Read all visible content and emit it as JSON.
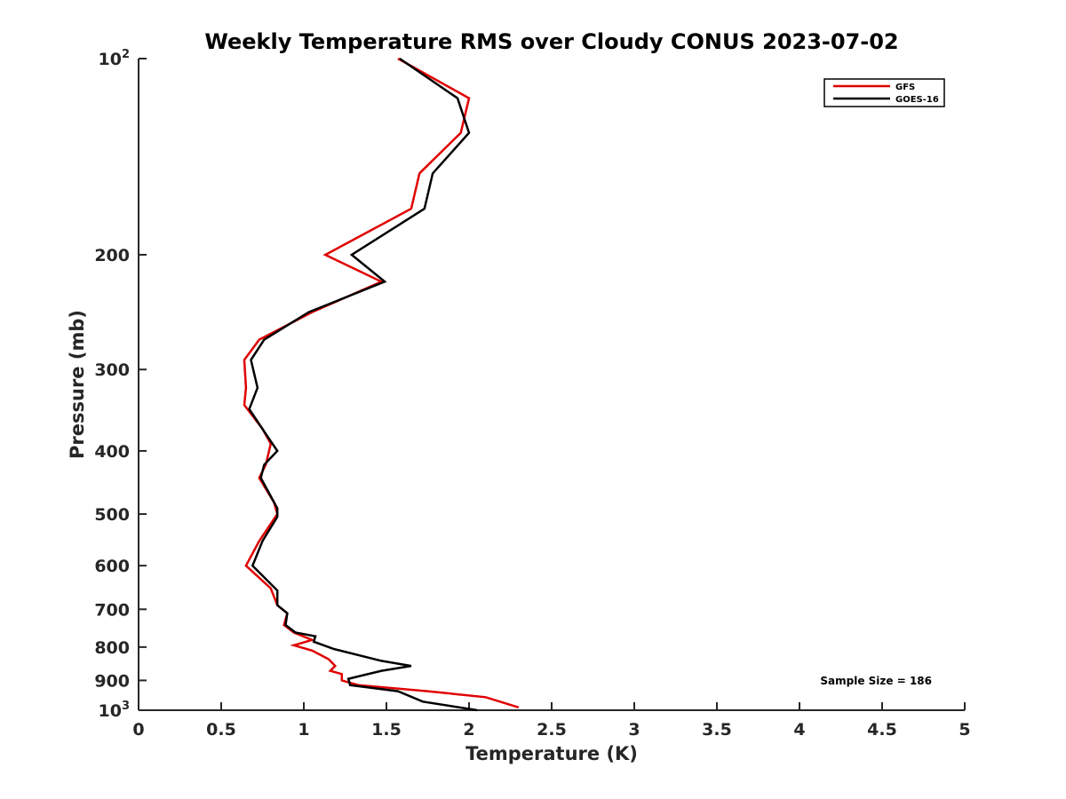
{
  "chart_data": {
    "type": "line",
    "title": "Weekly Temperature RMS over Cloudy CONUS 2023-07-02",
    "xlabel": "Temperature (K)",
    "ylabel": "Pressure (mb)",
    "xlim": [
      0,
      5
    ],
    "ylim": [
      100,
      1000
    ],
    "y_scale": "log",
    "y_reversed": true,
    "grid": false,
    "legend_position": "top-right",
    "x_ticks": [
      0,
      0.5,
      1,
      1.5,
      2,
      2.5,
      3,
      3.5,
      4,
      4.5,
      5
    ],
    "x_tick_labels": [
      "0",
      "0.5",
      "1",
      "1.5",
      "2",
      "2.5",
      "3",
      "3.5",
      "4",
      "4.5",
      "5"
    ],
    "y_ticks": [
      {
        "value": 100,
        "label": "10",
        "sup": "2"
      },
      {
        "value": 200,
        "label": "200",
        "sup": ""
      },
      {
        "value": 300,
        "label": "300",
        "sup": ""
      },
      {
        "value": 400,
        "label": "400",
        "sup": ""
      },
      {
        "value": 500,
        "label": "500",
        "sup": ""
      },
      {
        "value": 600,
        "label": "600",
        "sup": ""
      },
      {
        "value": 700,
        "label": "700",
        "sup": ""
      },
      {
        "value": 800,
        "label": "800",
        "sup": ""
      },
      {
        "value": 900,
        "label": "900",
        "sup": ""
      },
      {
        "value": 1000,
        "label": "10",
        "sup": "3"
      }
    ],
    "series": [
      {
        "name": "GFS",
        "color": "#e00000",
        "points": [
          [
            1.57,
            100
          ],
          [
            2.0,
            115
          ],
          [
            1.95,
            130
          ],
          [
            1.7,
            150
          ],
          [
            1.65,
            170
          ],
          [
            1.13,
            200
          ],
          [
            1.47,
            220
          ],
          [
            1.05,
            245
          ],
          [
            0.73,
            270
          ],
          [
            0.64,
            290
          ],
          [
            0.65,
            320
          ],
          [
            0.64,
            340
          ],
          [
            0.75,
            370
          ],
          [
            0.8,
            390
          ],
          [
            0.77,
            420
          ],
          [
            0.73,
            440
          ],
          [
            0.82,
            480
          ],
          [
            0.84,
            500
          ],
          [
            0.73,
            550
          ],
          [
            0.65,
            600
          ],
          [
            0.8,
            650
          ],
          [
            0.84,
            690
          ],
          [
            0.9,
            710
          ],
          [
            0.88,
            740
          ],
          [
            0.94,
            760
          ],
          [
            1.05,
            780
          ],
          [
            0.94,
            795
          ],
          [
            1.05,
            810
          ],
          [
            1.15,
            835
          ],
          [
            1.19,
            855
          ],
          [
            1.16,
            870
          ],
          [
            1.23,
            880
          ],
          [
            1.23,
            900
          ],
          [
            1.33,
            915
          ],
          [
            1.75,
            935
          ],
          [
            2.1,
            955
          ],
          [
            2.3,
            990
          ]
        ]
      },
      {
        "name": "GOES-16",
        "color": "#000000",
        "points": [
          [
            1.58,
            100
          ],
          [
            1.93,
            115
          ],
          [
            2.0,
            130
          ],
          [
            1.78,
            150
          ],
          [
            1.73,
            170
          ],
          [
            1.29,
            200
          ],
          [
            1.49,
            220
          ],
          [
            1.03,
            245
          ],
          [
            0.76,
            270
          ],
          [
            0.68,
            290
          ],
          [
            0.72,
            320
          ],
          [
            0.67,
            345
          ],
          [
            0.78,
            380
          ],
          [
            0.84,
            400
          ],
          [
            0.76,
            420
          ],
          [
            0.74,
            440
          ],
          [
            0.84,
            490
          ],
          [
            0.84,
            505
          ],
          [
            0.75,
            550
          ],
          [
            0.69,
            600
          ],
          [
            0.84,
            655
          ],
          [
            0.84,
            690
          ],
          [
            0.9,
            710
          ],
          [
            0.89,
            740
          ],
          [
            0.95,
            760
          ],
          [
            1.07,
            770
          ],
          [
            1.06,
            785
          ],
          [
            1.18,
            805
          ],
          [
            1.47,
            840
          ],
          [
            1.65,
            855
          ],
          [
            1.47,
            870
          ],
          [
            1.27,
            895
          ],
          [
            1.28,
            915
          ],
          [
            1.57,
            935
          ],
          [
            1.72,
            970
          ],
          [
            2.05,
            1000
          ]
        ]
      }
    ],
    "annotation": "Sample Size = 186"
  }
}
